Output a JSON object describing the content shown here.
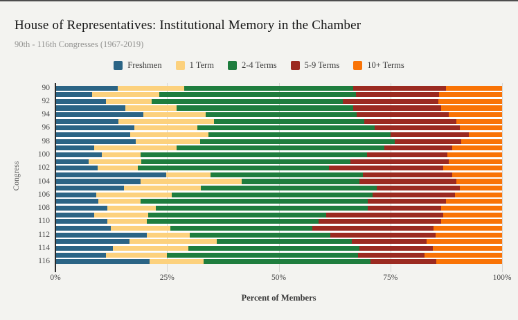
{
  "header": {
    "title": "House of Representatives: Institutional Memory in the Chamber",
    "subtitle": "90th - 116th Congresses (1967-2019)"
  },
  "axes": {
    "x_title": "Percent of Members",
    "y_title": "Congress",
    "x_tick_labels": [
      "0%",
      "25%",
      "50%",
      "75%",
      "100%"
    ],
    "x_tick_values": [
      0,
      25,
      50,
      75,
      100
    ]
  },
  "colors": {
    "background": "#f3f3f0",
    "freshmen_blue": "#2b6485",
    "one_term_yellow": "#fcd17d",
    "two_four_green": "#1e7d3e",
    "five_nine_red": "#9b2a21",
    "ten_plus_orange": "#f97306",
    "gridline": "#d6d6d3"
  },
  "chart_data": {
    "type": "bar",
    "orientation": "horizontal-stacked",
    "title": "House of Representatives: Institutional Memory in the Chamber",
    "subtitle": "90th - 116th Congresses (1967-2019)",
    "xlabel": "Percent of Members",
    "ylabel": "Congress",
    "xlim": [
      0,
      100
    ],
    "grid": "vertical at 25/50/75/100",
    "legend_position": "top-center",
    "y_label_every": 2,
    "categories": [
      90,
      91,
      92,
      93,
      94,
      95,
      96,
      97,
      98,
      99,
      100,
      101,
      102,
      103,
      104,
      105,
      106,
      107,
      108,
      109,
      110,
      111,
      112,
      113,
      114,
      115,
      116
    ],
    "series": [
      {
        "name": "Freshmen",
        "color": "#2b6485",
        "values": [
          13.9,
          8.2,
          11.3,
          15.7,
          19.7,
          14.1,
          17.6,
          16.7,
          18.0,
          8.7,
          10.4,
          7.5,
          9.5,
          24.8,
          19.0,
          15.4,
          9.1,
          9.6,
          11.7,
          8.7,
          11.7,
          12.4,
          20.4,
          16.6,
          12.9,
          11.3,
          21.1
        ]
      },
      {
        "name": "1 Term",
        "color": "#fcd17d",
        "values": [
          15.0,
          15.0,
          10.2,
          11.4,
          13.9,
          21.4,
          14.2,
          17.6,
          14.4,
          18.5,
          8.6,
          11.8,
          9.0,
          9.9,
          22.7,
          17.2,
          16.9,
          9.4,
          10.8,
          12.0,
          8.7,
          13.3,
          9.7,
          19.6,
          16.9,
          13.7,
          12.1
        ]
      },
      {
        "name": "2-4 Terms",
        "color": "#1e7d3e",
        "values": [
          37.8,
          44.1,
          42.9,
          39.6,
          33.8,
          33.7,
          39.7,
          40.7,
          43.6,
          46.4,
          50.7,
          46.7,
          42.8,
          34.1,
          26.4,
          39.3,
          45.0,
          50.9,
          47.4,
          39.9,
          38.5,
          31.8,
          31.4,
          30.2,
          38.3,
          42.8,
          37.4
        ]
      },
      {
        "name": "5-9 Terms",
        "color": "#9b2a21",
        "values": [
          20.7,
          18.6,
          21.3,
          19.7,
          20.7,
          20.6,
          19.1,
          17.6,
          14.8,
          15.2,
          18.1,
          22.0,
          25.6,
          20.0,
          21.6,
          18.6,
          18.4,
          17.5,
          16.4,
          26.2,
          27.4,
          27.1,
          23.6,
          16.7,
          16.4,
          14.9,
          14.7
        ]
      },
      {
        "name": "10+ Terms",
        "color": "#f97306",
        "values": [
          12.6,
          14.1,
          14.3,
          13.6,
          11.9,
          10.2,
          9.4,
          7.4,
          9.2,
          11.2,
          12.2,
          12.0,
          13.1,
          11.2,
          10.3,
          9.5,
          10.6,
          12.6,
          13.7,
          13.2,
          13.7,
          15.4,
          14.9,
          16.9,
          15.5,
          17.3,
          14.7
        ]
      }
    ]
  }
}
